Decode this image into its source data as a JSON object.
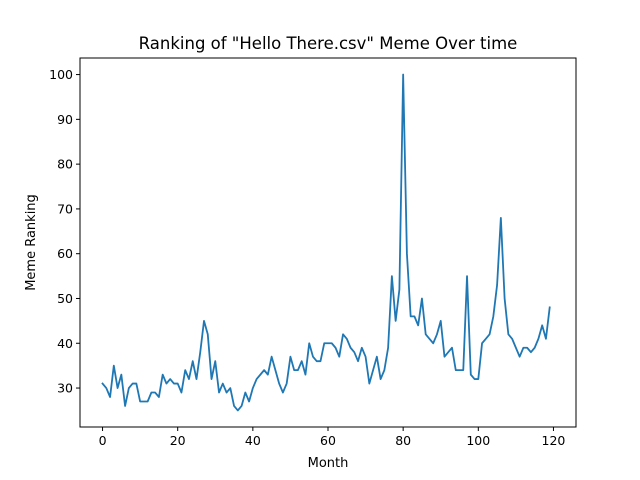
{
  "chart_data": {
    "type": "line",
    "title": "Ranking of \"Hello There.csv\" Meme Over time",
    "xlabel": "Month",
    "ylabel": "Meme Ranking",
    "xlim": [
      -6,
      126
    ],
    "ylim": [
      21.3,
      103.7
    ],
    "xticks": [
      0,
      20,
      40,
      60,
      80,
      100,
      120
    ],
    "yticks": [
      30,
      40,
      50,
      60,
      70,
      80,
      90,
      100
    ],
    "grid": false,
    "legend": "none",
    "line_color": "#1f77b4",
    "series": [
      {
        "x": [
          0,
          1,
          2,
          3,
          4,
          5,
          6,
          7,
          8,
          9,
          10,
          11,
          12,
          13,
          14,
          15,
          16,
          17,
          18,
          19,
          20,
          21,
          22,
          23,
          24,
          25,
          26,
          27,
          28,
          29,
          30,
          31,
          32,
          33,
          34,
          35,
          36,
          37,
          38,
          39,
          40,
          41,
          42,
          43,
          44,
          45,
          46,
          47,
          48,
          49,
          50,
          51,
          52,
          53,
          54,
          55,
          56,
          57,
          58,
          59,
          60,
          61,
          62,
          63,
          64,
          65,
          66,
          67,
          68,
          69,
          70,
          71,
          72,
          73,
          74,
          75,
          76,
          77,
          78,
          79,
          80,
          81,
          82,
          83,
          84,
          85,
          86,
          87,
          88,
          89,
          90,
          91,
          92,
          93,
          94,
          95,
          96,
          97,
          98,
          99,
          100,
          101,
          102,
          103,
          104,
          105,
          106,
          107,
          108,
          109,
          110,
          111,
          112,
          113,
          114,
          115,
          116,
          117,
          118,
          119
        ],
        "values": [
          31,
          30,
          28,
          35,
          30,
          33,
          26,
          30,
          31,
          31,
          27,
          27,
          27,
          29,
          29,
          28,
          33,
          31,
          32,
          31,
          31,
          29,
          34,
          32,
          36,
          32,
          38,
          45,
          42,
          32,
          36,
          29,
          31,
          29,
          30,
          26,
          25,
          26,
          29,
          27,
          30,
          32,
          33,
          34,
          33,
          37,
          34,
          31,
          29,
          31,
          37,
          34,
          34,
          36,
          33,
          40,
          37,
          36,
          36,
          40,
          40,
          40,
          39,
          37,
          42,
          41,
          39,
          38,
          36,
          39,
          37,
          31,
          34,
          37,
          32,
          34,
          39,
          55,
          45,
          52,
          100,
          60,
          46,
          46,
          44,
          50,
          42,
          41,
          40,
          42,
          45,
          37,
          38,
          39,
          34,
          34,
          34,
          55,
          33,
          32,
          32,
          40,
          41,
          42,
          46,
          53,
          68,
          50,
          42,
          41,
          39,
          37,
          39,
          39,
          38,
          39,
          41,
          44,
          41,
          48
        ]
      }
    ]
  }
}
